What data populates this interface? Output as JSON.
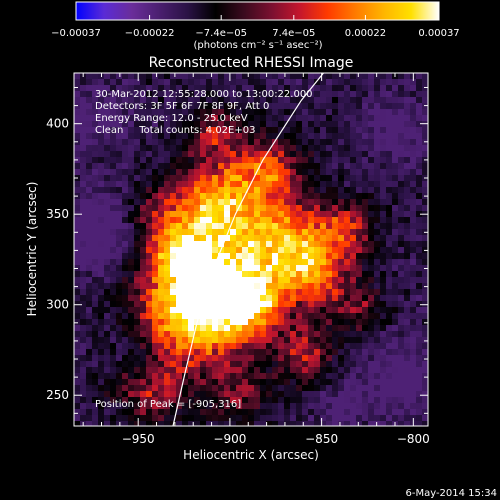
{
  "chart_data": {
    "type": "heatmap",
    "title": "Reconstructed RHESSI Image",
    "xlabel": "Heliocentric X (arcsec)",
    "ylabel": "Heliocentric Y (arcsec)",
    "xlim": [
      -985,
      -792
    ],
    "ylim": [
      233,
      428
    ],
    "x_ticks": [
      -950,
      -900,
      -850,
      -800
    ],
    "x_tick_labels": [
      "−950",
      "−900",
      "−850",
      "−800"
    ],
    "y_ticks": [
      250,
      300,
      350,
      400
    ],
    "y_tick_labels": [
      "250",
      "300",
      "350",
      "400"
    ],
    "colorbar": {
      "range": [
        -0.00037,
        0.00037
      ],
      "ticks": [
        -0.00037,
        -0.00022,
        -7.4e-05,
        7.4e-05,
        0.00022,
        0.00037
      ],
      "tick_labels": [
        "−0.00037",
        "−0.00022",
        "−7.4e−05",
        "7.4e−05",
        "0.00022",
        "0.00037"
      ],
      "units": "(photons cm⁻² s⁻¹ asec⁻²)",
      "colormap": [
        "#0000ff",
        "#5a2bd6",
        "#6a2d9a",
        "#4a1f6f",
        "#2a1245",
        "#000000",
        "#3a0a1e",
        "#7a1030",
        "#c4162d",
        "#ff3a00",
        "#ff7a00",
        "#ffb400",
        "#ffe000",
        "#ffffff"
      ]
    },
    "annotations": [
      "30-Mar-2012 12:55:28.000 to 13:00:22.000",
      "Detectors: 3F 5F 6F 7F 8F 9F, Att 0",
      "Energy Range: 12.0 - 25.0 keV",
      "Clean     Total counts: 4.02E+03"
    ],
    "peak_label": "Position of Peak = [-905,316]",
    "peak": [
      -905,
      316
    ],
    "limb_curve": [
      [
        -931,
        233
      ],
      [
        -925,
        260
      ],
      [
        -918,
        290
      ],
      [
        -909,
        320
      ],
      [
        -897,
        350
      ],
      [
        -882,
        380
      ],
      [
        -861,
        413
      ],
      [
        -849,
        428
      ]
    ],
    "sources": [
      {
        "x": -905,
        "y": 316,
        "s": 25,
        "a": 1.0
      },
      {
        "x": -925,
        "y": 292,
        "s": 20,
        "a": 0.82
      },
      {
        "x": -910,
        "y": 357,
        "s": 16,
        "a": 0.8
      },
      {
        "x": -880,
        "y": 374,
        "s": 14,
        "a": 0.72
      },
      {
        "x": -868,
        "y": 336,
        "s": 16,
        "a": 0.74
      },
      {
        "x": -850,
        "y": 316,
        "s": 14,
        "a": 0.64
      },
      {
        "x": -836,
        "y": 343,
        "s": 11,
        "a": 0.58
      },
      {
        "x": -858,
        "y": 272,
        "s": 12,
        "a": 0.54
      },
      {
        "x": -944,
        "y": 252,
        "s": 14,
        "a": 0.5
      },
      {
        "x": -930,
        "y": 329,
        "s": 11,
        "a": 0.56
      },
      {
        "x": -888,
        "y": 300,
        "s": 12,
        "a": 0.6
      },
      {
        "x": -908,
        "y": 396,
        "s": 10,
        "a": 0.52
      },
      {
        "x": -895,
        "y": 250,
        "s": 12,
        "a": 0.42
      },
      {
        "x": -942,
        "y": 352,
        "s": 10,
        "a": 0.32
      },
      {
        "x": -828,
        "y": 296,
        "s": 9,
        "a": 0.38
      }
    ],
    "negative_sources": [
      {
        "x": -973,
        "y": 340,
        "s": 16,
        "a": 0.9
      },
      {
        "x": -950,
        "y": 275,
        "s": 11,
        "a": 0.55
      },
      {
        "x": -808,
        "y": 396,
        "s": 13,
        "a": 0.65
      },
      {
        "x": -808,
        "y": 259,
        "s": 15,
        "a": 0.72
      },
      {
        "x": -973,
        "y": 404,
        "s": 12,
        "a": 0.6
      },
      {
        "x": -840,
        "y": 244,
        "s": 10,
        "a": 0.5
      }
    ]
  },
  "footer": {
    "date": "6-May-2014 15:34"
  }
}
